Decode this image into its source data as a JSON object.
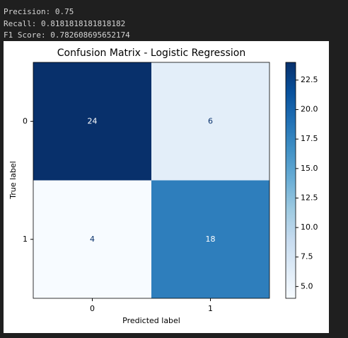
{
  "output_lines": [
    "Precision: 0.75",
    "Recall: 0.8181818181818182",
    "F1 Score: 0.782608695652174"
  ],
  "chart_data": {
    "type": "heatmap",
    "title": "Confusion Matrix - Logistic Regression",
    "xlabel": "Predicted label",
    "ylabel": "True label",
    "x_categories": [
      "0",
      "1"
    ],
    "y_categories": [
      "0",
      "1"
    ],
    "values": [
      [
        24,
        6
      ],
      [
        4,
        18
      ]
    ],
    "colormap": [
      "#f7fbff",
      "#deebf7",
      "#c6dbef",
      "#9ecae1",
      "#6baed6",
      "#4292c6",
      "#2171b5",
      "#08519c",
      "#08306b"
    ],
    "clim": [
      4,
      24
    ],
    "cticks": [
      {
        "value": 5,
        "label": "5.0"
      },
      7.5,
      {
        "value": 10,
        "label": "10.0"
      },
      12.5,
      {
        "value": 15,
        "label": "15.0"
      },
      17.5,
      {
        "value": 20,
        "label": "20.0"
      },
      22.5
    ]
  }
}
